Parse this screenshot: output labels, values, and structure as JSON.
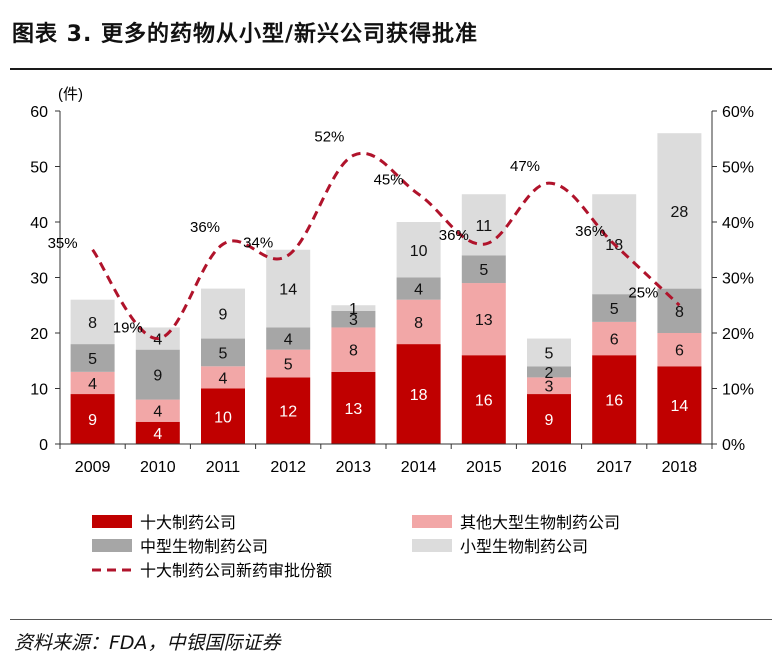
{
  "title": "图表 3. 更多的药物从小型/新兴公司获得批准",
  "source": "资料来源：FDA，中银国际证券",
  "colors": {
    "top10": "#c00000",
    "other_large": "#f2a7a7",
    "mid": "#a6a6a6",
    "small": "#dcdcdc",
    "line": "#b0132b"
  },
  "chart_data": {
    "type": "bar",
    "stacked": true,
    "categories": [
      "2009",
      "2010",
      "2011",
      "2012",
      "2013",
      "2014",
      "2015",
      "2016",
      "2017",
      "2018"
    ],
    "y_left_label": "(件)",
    "y_left_ticks": [
      "0",
      "10",
      "20",
      "30",
      "40",
      "50",
      "60"
    ],
    "y_left_range": [
      0,
      60
    ],
    "y_right_ticks": [
      "0%",
      "10%",
      "20%",
      "30%",
      "40%",
      "50%",
      "60%"
    ],
    "y_right_range": [
      0,
      60
    ],
    "grid": false,
    "legend_position": "bottom",
    "series": [
      {
        "name": "十大制药公司",
        "key": "top10",
        "values": [
          9,
          4,
          10,
          12,
          13,
          18,
          16,
          9,
          16,
          14
        ]
      },
      {
        "name": "其他大型生物制药公司",
        "key": "other_large",
        "values": [
          4,
          4,
          4,
          5,
          8,
          8,
          13,
          3,
          6,
          6
        ]
      },
      {
        "name": "中型生物制药公司",
        "key": "mid",
        "values": [
          5,
          9,
          5,
          4,
          3,
          4,
          5,
          2,
          5,
          8
        ]
      },
      {
        "name": "小型生物制药公司",
        "key": "small",
        "values": [
          8,
          4,
          9,
          14,
          1,
          10,
          11,
          5,
          18,
          28
        ]
      }
    ],
    "line_series": {
      "name": "十大制药公司新药审批份额",
      "axis": "right",
      "values": [
        35,
        19,
        36,
        34,
        52,
        45,
        36,
        47,
        36,
        25
      ],
      "labels": [
        "35%",
        "19%",
        "36%",
        "34%",
        "52%",
        "45%",
        "36%",
        "47%",
        "36%",
        "25%"
      ]
    }
  }
}
